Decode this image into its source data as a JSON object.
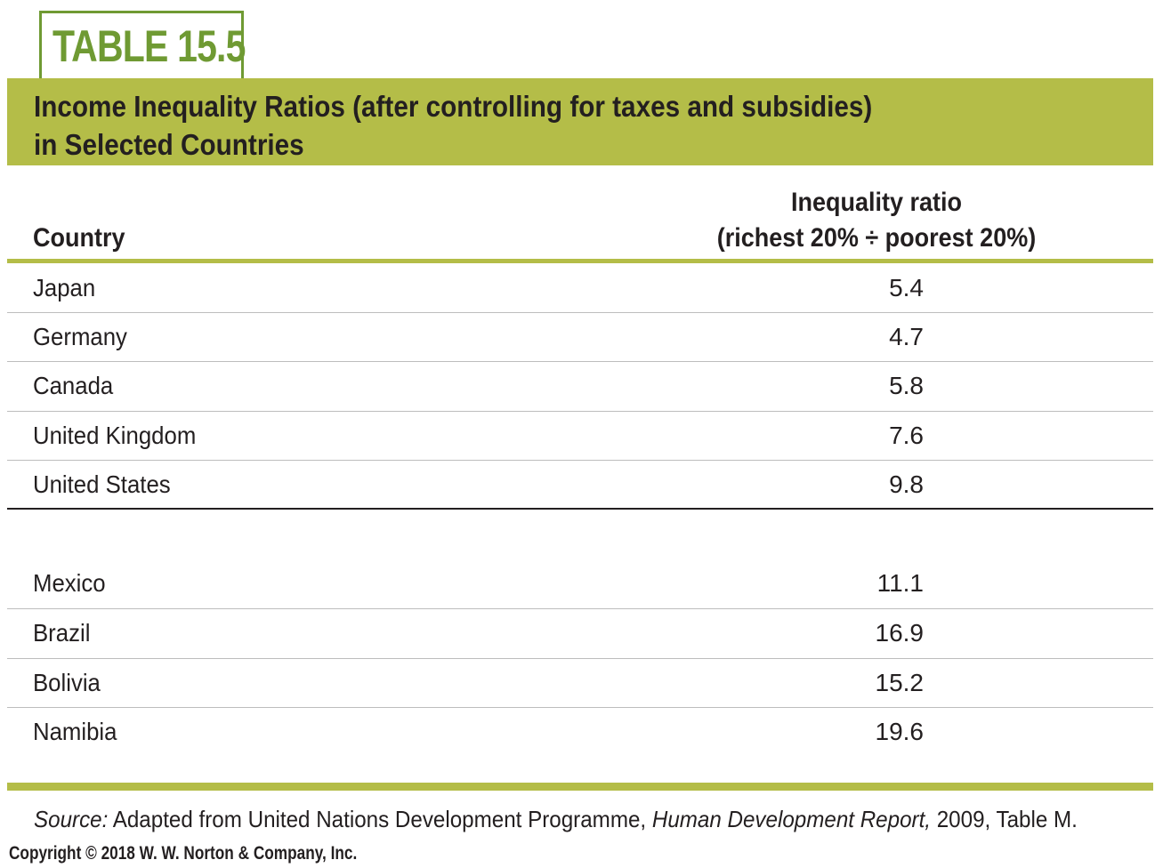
{
  "table_label": "TABLE 15.5",
  "title": {
    "line1": "Income Inequality Ratios (after controlling for taxes and subsidies)",
    "line2": "in Selected Countries"
  },
  "columns": {
    "country": "Country",
    "ratio_line1": "Inequality ratio",
    "ratio_line2": "(richest 20% ÷ poorest 20%)"
  },
  "group1": [
    {
      "country": "Japan",
      "ratio": "5.4"
    },
    {
      "country": "Germany",
      "ratio": "4.7"
    },
    {
      "country": "Canada",
      "ratio": "5.8"
    },
    {
      "country": "United Kingdom",
      "ratio": "7.6"
    },
    {
      "country": "United States",
      "ratio": "9.8"
    }
  ],
  "group2": [
    {
      "country": "Mexico",
      "ratio": "11.1"
    },
    {
      "country": "Brazil",
      "ratio": "16.9"
    },
    {
      "country": "Bolivia",
      "ratio": "15.2"
    },
    {
      "country": "Namibia",
      "ratio": "19.6"
    }
  ],
  "source": {
    "label": "Source:",
    "text_a": " Adapted from United Nations Development Programme, ",
    "report": "Human Development Report,",
    "text_b": " 2009, Table M."
  },
  "copyright": "Copyright © 2018 W. W. Norton & Company, Inc.",
  "colors": {
    "accent_green": "#b4bd48",
    "label_green": "#6f9a33"
  }
}
